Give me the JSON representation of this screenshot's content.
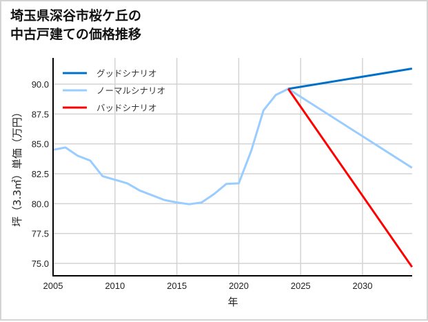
{
  "title": "埼玉県深谷市桜ケ丘の\n中古戸建ての価格推移",
  "chart_data": {
    "type": "line",
    "title": "埼玉県深谷市桜ケ丘の中古戸建ての価格推移",
    "xlabel": "年",
    "ylabel": "坪（3.3㎡）単価（万円）",
    "xlim": [
      2005,
      2034
    ],
    "ylim": [
      73.9,
      92.3
    ],
    "x_ticks": [
      2005,
      2010,
      2015,
      2020,
      2025,
      2030
    ],
    "x_tick_labels": [
      "2005",
      "2010",
      "2015",
      "2020",
      "2025",
      "2030"
    ],
    "y_ticks": [
      75.0,
      77.5,
      80.0,
      82.5,
      85.0,
      87.5,
      90.0
    ],
    "y_tick_labels": [
      "75.0",
      "77.5",
      "80.0",
      "82.5",
      "85.0",
      "87.5",
      "90.0"
    ],
    "grid": true,
    "legend_position": "upper left",
    "series": [
      {
        "name": "グッドシナリオ",
        "color": "#0070c9",
        "x": [
          2024,
          2034
        ],
        "values": [
          89.6,
          91.3
        ]
      },
      {
        "name": "ノーマルシナリオ",
        "color": "#99ccff",
        "x": [
          2005,
          2006,
          2007,
          2008,
          2009,
          2010,
          2011,
          2012,
          2013,
          2014,
          2015,
          2016,
          2017,
          2018,
          2019,
          2020,
          2021,
          2022,
          2023,
          2024,
          2034
        ],
        "values": [
          84.5,
          84.7,
          84.0,
          83.6,
          82.3,
          82.0,
          81.7,
          81.1,
          80.7,
          80.3,
          80.1,
          79.95,
          80.1,
          80.8,
          81.65,
          81.7,
          84.4,
          87.8,
          89.1,
          89.6,
          83.0
        ]
      },
      {
        "name": "バッドシナリオ",
        "color": "#ff0000",
        "x": [
          2024,
          2034
        ],
        "values": [
          89.6,
          74.7
        ]
      }
    ]
  },
  "colors": {
    "grid": "#d3d3d3",
    "axis": "#000000",
    "frame": "#d4d4d4"
  }
}
